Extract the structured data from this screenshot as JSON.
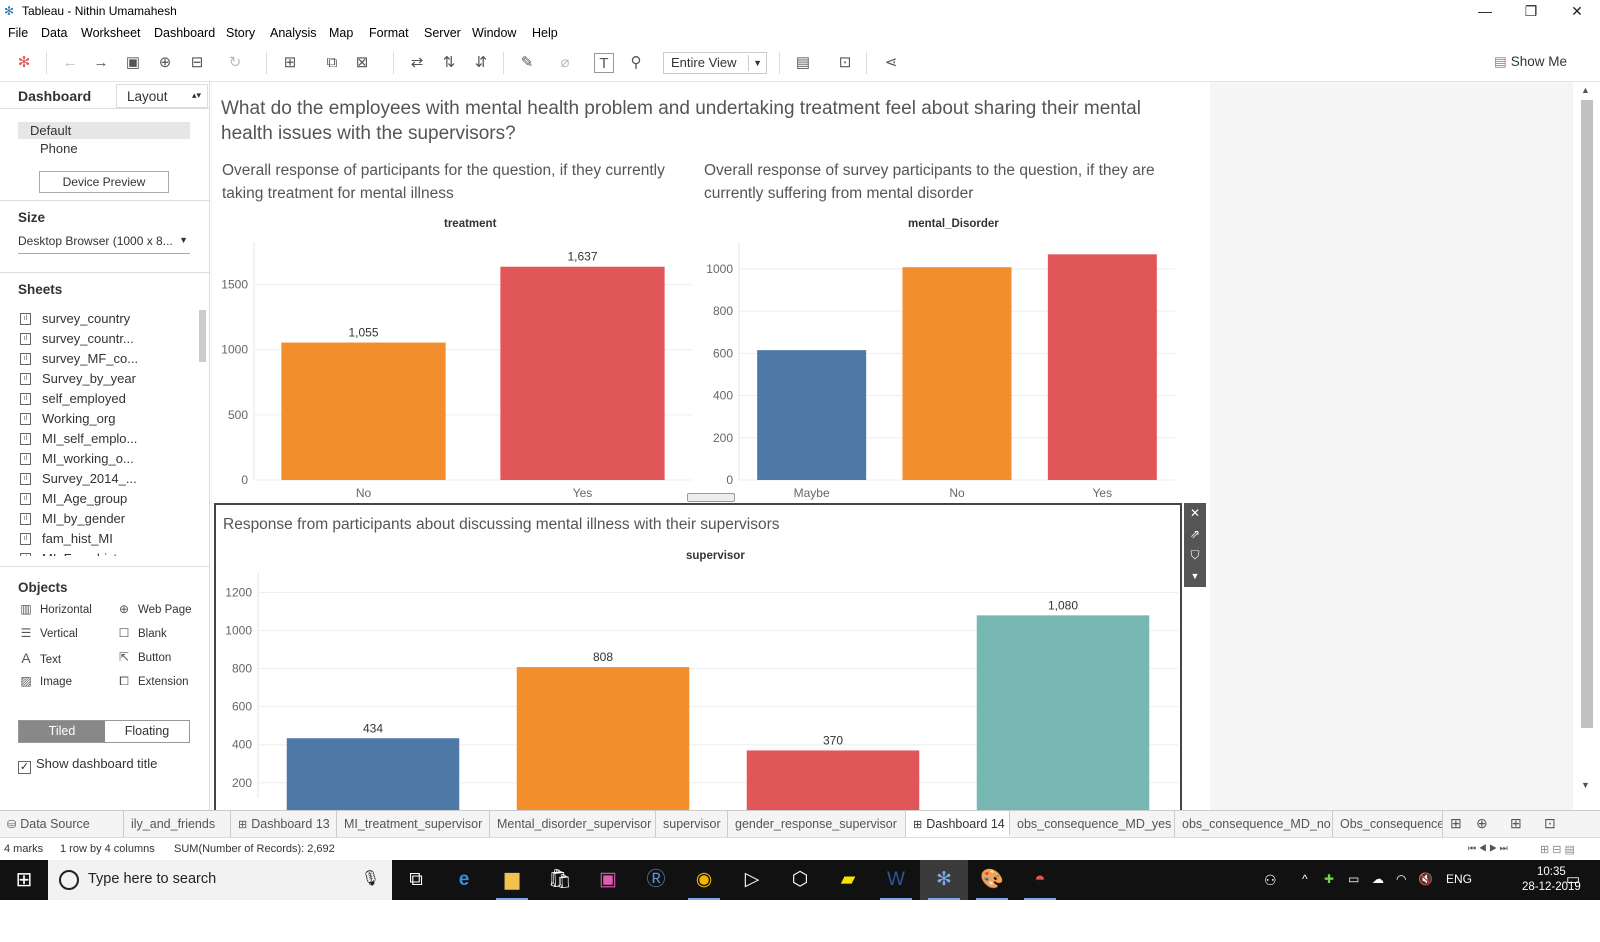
{
  "window": {
    "title": "Tableau - Nithin Umamahesh"
  },
  "menu": [
    "File",
    "Data",
    "Worksheet",
    "Dashboard",
    "Story",
    "Analysis",
    "Map",
    "Format",
    "Server",
    "Window",
    "Help"
  ],
  "toolbar": {
    "view_select": "Entire View",
    "show_me": "Show Me"
  },
  "sidebar": {
    "tab_dashboard": "Dashboard",
    "tab_layout": "Layout",
    "device_default": "Default",
    "device_phone": "Phone",
    "device_preview": "Device Preview",
    "size_heading": "Size",
    "size_value": "Desktop Browser (1000 x 8...",
    "sheets_heading": "Sheets",
    "sheets": [
      "survey_country",
      "survey_countr...",
      "survey_MF_co...",
      "Survey_by_year",
      "self_employed",
      "Working_org",
      "MI_self_emplo...",
      "MI_working_o...",
      "Survey_2014_...",
      "MI_Age_group",
      "MI_by_gender",
      "fam_hist_MI",
      "MI_Fam_hist"
    ],
    "objects_heading": "Objects",
    "objects": {
      "horizontal": "Horizontal",
      "web_page": "Web Page",
      "vertical": "Vertical",
      "blank": "Blank",
      "text": "Text",
      "button": "Button",
      "image": "Image",
      "extension": "Extension"
    },
    "tiled": "Tiled",
    "floating": "Floating",
    "show_title": "Show dashboard title"
  },
  "dashboard": {
    "title": "What do the employees with mental health problem and undertaking treatment feel about sharing their mental health issues with the supervisors?",
    "caption_left": "Overall response of participants for the question, if they currently taking treatment for mental illness",
    "caption_right": "Overall response of survey participants to the question, if they are currently suffering from mental disorder",
    "caption_bottom": "Response from participants about discussing mental illness with their supervisors"
  },
  "chart_data": [
    {
      "type": "bar",
      "title": "treatment",
      "categories": [
        "No",
        "Yes"
      ],
      "values": [
        1055,
        1637
      ],
      "labels": [
        "1,055",
        "1,637"
      ],
      "colors": [
        "#f28e2b",
        "#e15759"
      ],
      "yticks": [
        0,
        500,
        1000,
        1500
      ],
      "ylim": [
        0,
        1750
      ],
      "show_data_labels": true
    },
    {
      "type": "bar",
      "title": "mental_Disorder",
      "categories": [
        "Maybe",
        "No",
        "Yes"
      ],
      "values": [
        615,
        1008,
        1069
      ],
      "colors": [
        "#4e79a7",
        "#f28e2b",
        "#e15759"
      ],
      "yticks": [
        0,
        200,
        400,
        600,
        800,
        1000
      ],
      "ylim": [
        0,
        1080
      ],
      "show_data_labels": false
    },
    {
      "type": "bar",
      "title": "supervisor",
      "categories": [
        "",
        "",
        "",
        ""
      ],
      "values": [
        434,
        808,
        370,
        1080
      ],
      "labels": [
        "434",
        "808",
        "370",
        "1,080"
      ],
      "colors": [
        "#4e79a7",
        "#f28e2b",
        "#e15759",
        "#76b7b2"
      ],
      "yticks": [
        200,
        400,
        600,
        800,
        1000,
        1200
      ],
      "ylim": [
        120,
        1250
      ],
      "show_data_labels": true
    }
  ],
  "sheet_tabs": {
    "data_source": "Data Source",
    "tabs": [
      "ily_and_friends",
      "Dashboard 13",
      "MI_treatment_supervisor",
      "Mental_disorder_supervisor",
      "supervisor",
      "gender_response_supervisor",
      "Dashboard 14",
      "obs_consequence_MD_yes",
      "obs_consequence_MD_no",
      "Obs_consequence"
    ],
    "active": "Dashboard 14"
  },
  "status": {
    "marks": "4 marks",
    "rows": "1 row by 4 columns",
    "sum": "SUM(Number of Records): 2,692"
  },
  "taskbar": {
    "search_placeholder": "Type here to search",
    "lang": "ENG",
    "time": "10:35",
    "date": "28-12-2019"
  }
}
